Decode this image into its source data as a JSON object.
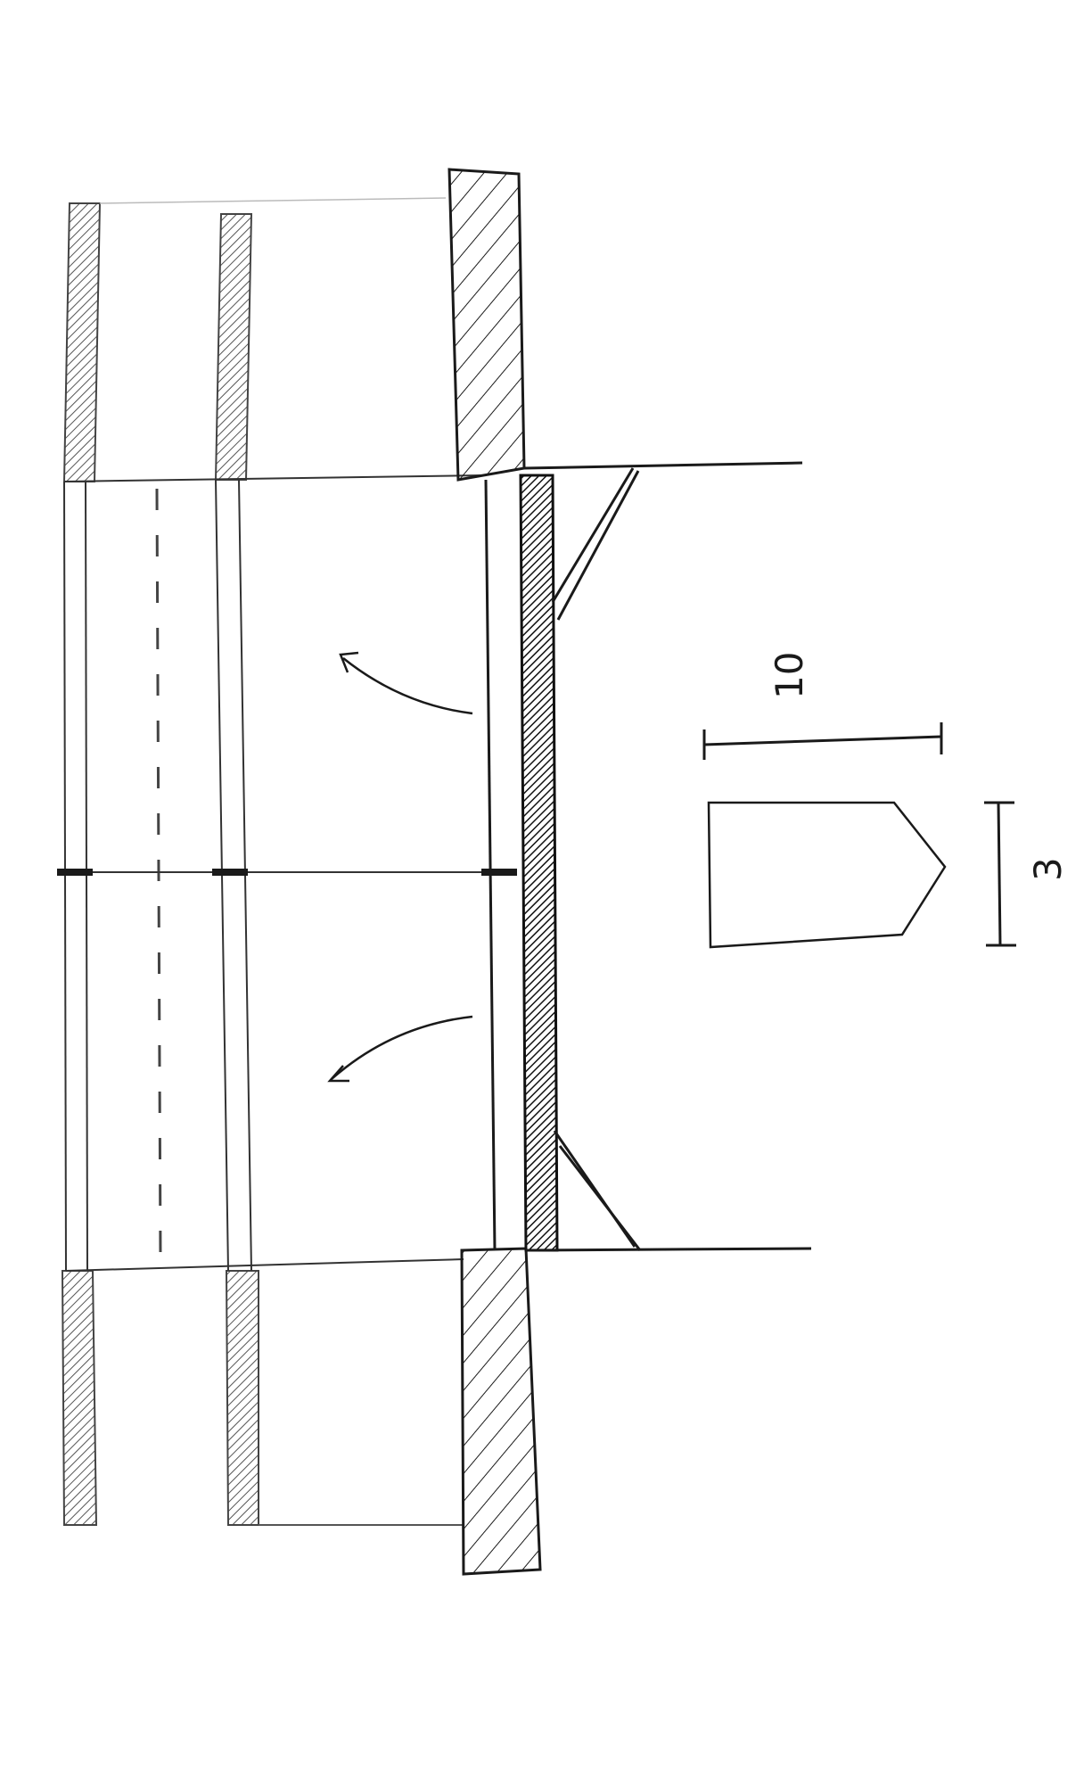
{
  "dimensions": {
    "width_label": "10",
    "height_label": "3"
  },
  "colors": {
    "ink": "#1a1a1a",
    "ink_light": "#6a6a6a",
    "paper": "#ffffff"
  }
}
